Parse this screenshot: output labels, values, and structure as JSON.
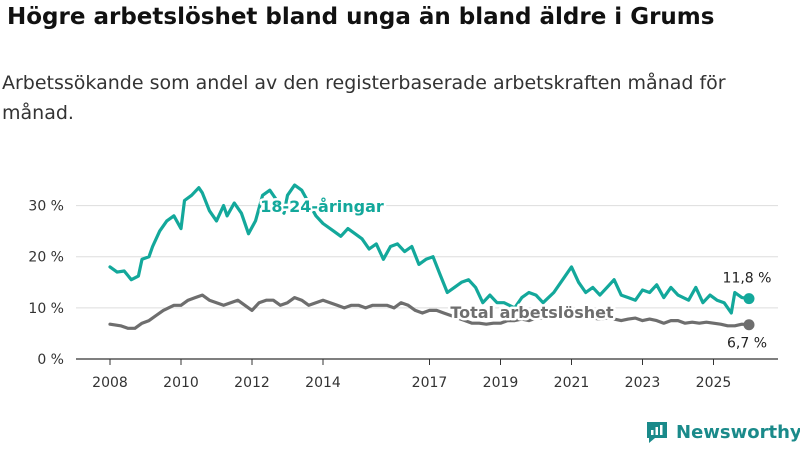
{
  "title": "Högre arbetslöshet bland unga än bland äldre i Grums",
  "subtitle": "Arbetssökande som andel av den registerbaserade arbetskraften månad för månad.",
  "brand": {
    "name": "Newsworthy",
    "color": "#1a8a8a"
  },
  "chart_data": {
    "type": "line",
    "title": "Högre arbetslöshet bland unga än bland äldre i Grums",
    "xlabel": "",
    "ylabel": "",
    "xlim": [
      2008,
      2026.3
    ],
    "ylim": [
      0,
      35
    ],
    "yticks": [
      0,
      10,
      20,
      30
    ],
    "ytick_labels": [
      "0 %",
      "10 %",
      "20 %",
      "30 %"
    ],
    "xticks": [
      2008,
      2010,
      2012,
      2014,
      2017,
      2019,
      2021,
      2023,
      2025
    ],
    "xtick_labels": [
      "2008",
      "2010",
      "2012",
      "2014",
      "2017",
      "2019",
      "2021",
      "2023",
      "2025"
    ],
    "grid": true,
    "legend": "inline labels",
    "series": [
      {
        "name": "18-24-åringar",
        "label": "18-24-åringar",
        "color": "#13a89b",
        "end_label": "11,8 %",
        "points": [
          [
            2008.0,
            18.0
          ],
          [
            2008.2,
            17.0
          ],
          [
            2008.4,
            17.2
          ],
          [
            2008.6,
            15.5
          ],
          [
            2008.8,
            16.2
          ],
          [
            2008.9,
            19.5
          ],
          [
            2009.1,
            20.0
          ],
          [
            2009.2,
            22.0
          ],
          [
            2009.4,
            25.0
          ],
          [
            2009.6,
            27.0
          ],
          [
            2009.8,
            28.0
          ],
          [
            2010.0,
            25.5
          ],
          [
            2010.1,
            31.0
          ],
          [
            2010.3,
            32.0
          ],
          [
            2010.5,
            33.5
          ],
          [
            2010.6,
            32.5
          ],
          [
            2010.8,
            29.0
          ],
          [
            2011.0,
            27.0
          ],
          [
            2011.2,
            30.0
          ],
          [
            2011.3,
            28.0
          ],
          [
            2011.5,
            30.5
          ],
          [
            2011.7,
            28.5
          ],
          [
            2011.9,
            24.5
          ],
          [
            2012.1,
            27.0
          ],
          [
            2012.3,
            32.0
          ],
          [
            2012.5,
            33.0
          ],
          [
            2012.7,
            31.0
          ],
          [
            2012.9,
            28.5
          ],
          [
            2013.0,
            32.0
          ],
          [
            2013.2,
            34.0
          ],
          [
            2013.4,
            33.0
          ],
          [
            2013.6,
            30.5
          ],
          [
            2013.8,
            28.0
          ],
          [
            2014.0,
            26.5
          ],
          [
            2014.3,
            25.0
          ],
          [
            2014.5,
            24.0
          ],
          [
            2014.7,
            25.5
          ],
          [
            2014.9,
            24.5
          ],
          [
            2015.1,
            23.5
          ],
          [
            2015.3,
            21.5
          ],
          [
            2015.5,
            22.5
          ],
          [
            2015.7,
            19.5
          ],
          [
            2015.9,
            22.0
          ],
          [
            2016.1,
            22.5
          ],
          [
            2016.3,
            21.0
          ],
          [
            2016.5,
            22.0
          ],
          [
            2016.7,
            18.5
          ],
          [
            2016.9,
            19.5
          ],
          [
            2017.1,
            20.0
          ],
          [
            2017.3,
            16.5
          ],
          [
            2017.5,
            13.0
          ],
          [
            2017.7,
            14.0
          ],
          [
            2017.9,
            15.0
          ],
          [
            2018.1,
            15.5
          ],
          [
            2018.3,
            14.0
          ],
          [
            2018.5,
            11.0
          ],
          [
            2018.7,
            12.5
          ],
          [
            2018.9,
            11.0
          ],
          [
            2019.1,
            11.0
          ],
          [
            2019.4,
            10.0
          ],
          [
            2019.6,
            12.0
          ],
          [
            2019.8,
            13.0
          ],
          [
            2020.0,
            12.5
          ],
          [
            2020.2,
            11.0
          ],
          [
            2020.5,
            13.0
          ],
          [
            2020.8,
            16.0
          ],
          [
            2021.0,
            18.0
          ],
          [
            2021.2,
            15.0
          ],
          [
            2021.4,
            13.0
          ],
          [
            2021.6,
            14.0
          ],
          [
            2021.8,
            12.5
          ],
          [
            2022.0,
            14.0
          ],
          [
            2022.2,
            15.5
          ],
          [
            2022.4,
            12.5
          ],
          [
            2022.6,
            12.0
          ],
          [
            2022.8,
            11.5
          ],
          [
            2023.0,
            13.5
          ],
          [
            2023.2,
            13.0
          ],
          [
            2023.4,
            14.5
          ],
          [
            2023.6,
            12.0
          ],
          [
            2023.8,
            14.0
          ],
          [
            2024.0,
            12.5
          ],
          [
            2024.3,
            11.5
          ],
          [
            2024.5,
            14.0
          ],
          [
            2024.7,
            11.0
          ],
          [
            2024.9,
            12.5
          ],
          [
            2025.1,
            11.5
          ],
          [
            2025.3,
            11.0
          ],
          [
            2025.5,
            9.0
          ],
          [
            2025.6,
            13.0
          ],
          [
            2025.8,
            12.0
          ],
          [
            2026.0,
            11.8
          ]
        ]
      },
      {
        "name": "Total arbetslöshet",
        "label": "Total arbetslöshet",
        "color": "#6e6e6e",
        "end_label": "6,7 %",
        "points": [
          [
            2008.0,
            6.8
          ],
          [
            2008.3,
            6.5
          ],
          [
            2008.5,
            6.0
          ],
          [
            2008.7,
            6.0
          ],
          [
            2008.9,
            7.0
          ],
          [
            2009.1,
            7.5
          ],
          [
            2009.3,
            8.5
          ],
          [
            2009.5,
            9.5
          ],
          [
            2009.8,
            10.5
          ],
          [
            2010.0,
            10.5
          ],
          [
            2010.2,
            11.5
          ],
          [
            2010.4,
            12.0
          ],
          [
            2010.6,
            12.5
          ],
          [
            2010.8,
            11.5
          ],
          [
            2011.0,
            11.0
          ],
          [
            2011.2,
            10.5
          ],
          [
            2011.4,
            11.0
          ],
          [
            2011.6,
            11.5
          ],
          [
            2011.8,
            10.5
          ],
          [
            2012.0,
            9.5
          ],
          [
            2012.2,
            11.0
          ],
          [
            2012.4,
            11.5
          ],
          [
            2012.6,
            11.5
          ],
          [
            2012.8,
            10.5
          ],
          [
            2013.0,
            11.0
          ],
          [
            2013.2,
            12.0
          ],
          [
            2013.4,
            11.5
          ],
          [
            2013.6,
            10.5
          ],
          [
            2013.8,
            11.0
          ],
          [
            2014.0,
            11.5
          ],
          [
            2014.2,
            11.0
          ],
          [
            2014.4,
            10.5
          ],
          [
            2014.6,
            10.0
          ],
          [
            2014.8,
            10.5
          ],
          [
            2015.0,
            10.5
          ],
          [
            2015.2,
            10.0
          ],
          [
            2015.4,
            10.5
          ],
          [
            2015.6,
            10.5
          ],
          [
            2015.8,
            10.5
          ],
          [
            2016.0,
            10.0
          ],
          [
            2016.2,
            11.0
          ],
          [
            2016.4,
            10.5
          ],
          [
            2016.6,
            9.5
          ],
          [
            2016.8,
            9.0
          ],
          [
            2017.0,
            9.5
          ],
          [
            2017.2,
            9.5
          ],
          [
            2017.4,
            9.0
          ],
          [
            2017.6,
            8.5
          ],
          [
            2017.8,
            8.0
          ],
          [
            2018.0,
            7.5
          ],
          [
            2018.2,
            7.0
          ],
          [
            2018.4,
            7.0
          ],
          [
            2018.6,
            6.8
          ],
          [
            2018.8,
            7.0
          ],
          [
            2019.0,
            7.0
          ],
          [
            2019.2,
            7.5
          ],
          [
            2019.4,
            7.5
          ],
          [
            2019.6,
            7.8
          ],
          [
            2019.8,
            7.5
          ],
          [
            2020.0,
            8.0
          ],
          [
            2020.2,
            8.0
          ],
          [
            2020.4,
            8.5
          ],
          [
            2020.6,
            9.0
          ],
          [
            2020.8,
            9.5
          ],
          [
            2021.0,
            9.5
          ],
          [
            2021.2,
            8.5
          ],
          [
            2021.4,
            8.0
          ],
          [
            2021.6,
            8.0
          ],
          [
            2021.8,
            7.8
          ],
          [
            2022.0,
            8.0
          ],
          [
            2022.2,
            7.8
          ],
          [
            2022.4,
            7.5
          ],
          [
            2022.6,
            7.8
          ],
          [
            2022.8,
            8.0
          ],
          [
            2023.0,
            7.5
          ],
          [
            2023.2,
            7.8
          ],
          [
            2023.4,
            7.5
          ],
          [
            2023.6,
            7.0
          ],
          [
            2023.8,
            7.5
          ],
          [
            2024.0,
            7.5
          ],
          [
            2024.2,
            7.0
          ],
          [
            2024.4,
            7.2
          ],
          [
            2024.6,
            7.0
          ],
          [
            2024.8,
            7.2
          ],
          [
            2025.0,
            7.0
          ],
          [
            2025.2,
            6.8
          ],
          [
            2025.4,
            6.5
          ],
          [
            2025.6,
            6.5
          ],
          [
            2025.8,
            6.8
          ],
          [
            2026.0,
            6.7
          ]
        ]
      }
    ]
  }
}
